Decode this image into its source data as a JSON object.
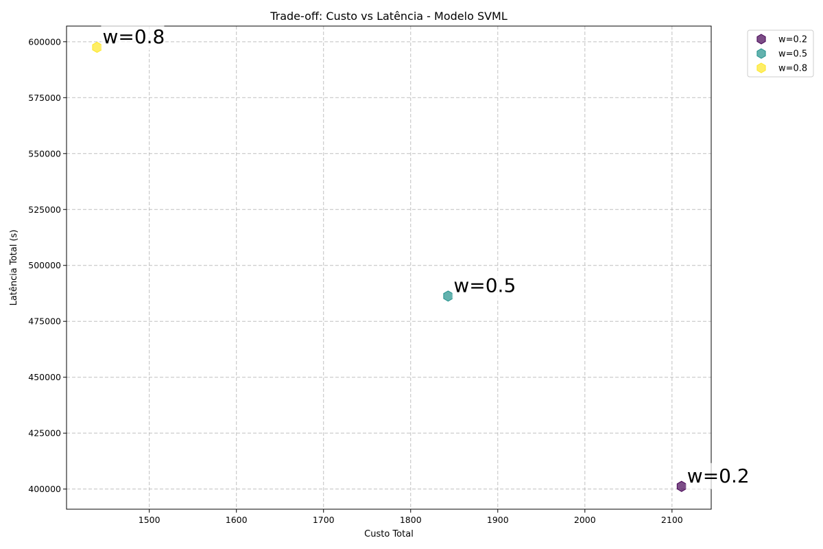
{
  "chart_data": {
    "type": "scatter",
    "title": "Trade-off: Custo vs Latência - Modelo SVML",
    "xlabel": "Custo Total",
    "ylabel": "Latência Total (s)",
    "xlim": [
      1405,
      2145
    ],
    "ylim": [
      391000,
      607000
    ],
    "x_ticks": [
      1500,
      1600,
      1700,
      1800,
      1900,
      2000,
      2100
    ],
    "y_ticks": [
      400000,
      425000,
      450000,
      475000,
      500000,
      525000,
      550000,
      575000,
      600000
    ],
    "grid": true,
    "legend_position": "outside-top-right",
    "marker": "hexagon",
    "series": [
      {
        "name": "w=0.2",
        "color": "#440154",
        "points": [
          {
            "x": 2111,
            "y": 401200
          }
        ],
        "annotation": "w=0.2"
      },
      {
        "name": "w=0.5",
        "color": "#21918c",
        "points": [
          {
            "x": 1843,
            "y": 486300
          }
        ],
        "annotation": "w=0.5"
      },
      {
        "name": "w=0.8",
        "color": "#fde725",
        "points": [
          {
            "x": 1440,
            "y": 597500
          }
        ],
        "annotation": "w=0.8"
      }
    ]
  }
}
